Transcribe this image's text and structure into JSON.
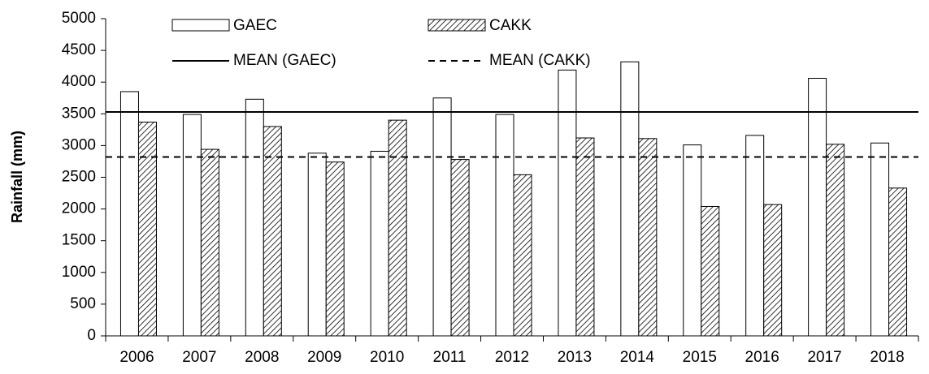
{
  "chart_data": {
    "type": "bar",
    "y_label": "Rainfall (mm)",
    "categories": [
      "2006",
      "2007",
      "2008",
      "2009",
      "2010",
      "2011",
      "2012",
      "2013",
      "2014",
      "2015",
      "2016",
      "2017",
      "2018"
    ],
    "series": [
      {
        "name": "GAEC",
        "color": "#ffffff",
        "hatch": false,
        "values": [
          3850,
          3490,
          3730,
          2880,
          2910,
          3750,
          3490,
          4190,
          4320,
          3010,
          3160,
          4060,
          3040
        ]
      },
      {
        "name": "CAKK",
        "color": "#ffffff",
        "hatch": true,
        "values": [
          3370,
          2940,
          3300,
          2740,
          3400,
          2780,
          2540,
          3120,
          3110,
          2040,
          2070,
          3020,
          2330
        ]
      }
    ],
    "mean_lines": [
      {
        "name": "MEAN (GAEC)",
        "value": 3530,
        "color": "#000000",
        "dashed": false
      },
      {
        "name": "MEAN (CAKK)",
        "value": 2820,
        "color": "#000000",
        "dashed": true
      }
    ],
    "ylim": [
      0,
      5000
    ],
    "yticks": [
      0,
      500,
      1000,
      1500,
      2000,
      2500,
      3000,
      3500,
      4000,
      4500,
      5000
    ]
  }
}
